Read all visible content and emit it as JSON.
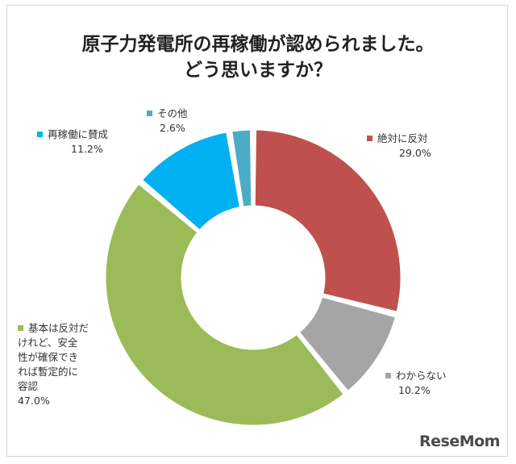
{
  "chart_data": {
    "type": "pie",
    "title_lines": [
      "原子力発電所の再稼働が認められました。",
      "どう思いますか？"
    ],
    "slices": [
      {
        "label": "絶対に反対",
        "value": 29.0,
        "value_text": "29.0%",
        "color": "#c0504d"
      },
      {
        "label": "わからない",
        "value": 10.2,
        "value_text": "10.2%",
        "color": "#a5a5a5"
      },
      {
        "label": "基本は反対だけれど、安全性が確保できれば暫定的に容認",
        "label_lines": [
          "基本は反対だ",
          "けれど、安全",
          "性が確保でき",
          "れば暫定的に",
          "容認"
        ],
        "value": 47.0,
        "value_text": "47.0%",
        "color": "#9bbb59"
      },
      {
        "label": "再稼働に賛成",
        "value": 11.2,
        "value_text": "11.2%",
        "color": "#00b0f0"
      },
      {
        "label": "その他",
        "value": 2.6,
        "value_text": "2.6%",
        "color": "#4bacc6"
      }
    ],
    "hole": "donut",
    "start": "12 o'clock",
    "direction": "clockwise"
  },
  "brand": {
    "logo_text": "ReseMom"
  }
}
